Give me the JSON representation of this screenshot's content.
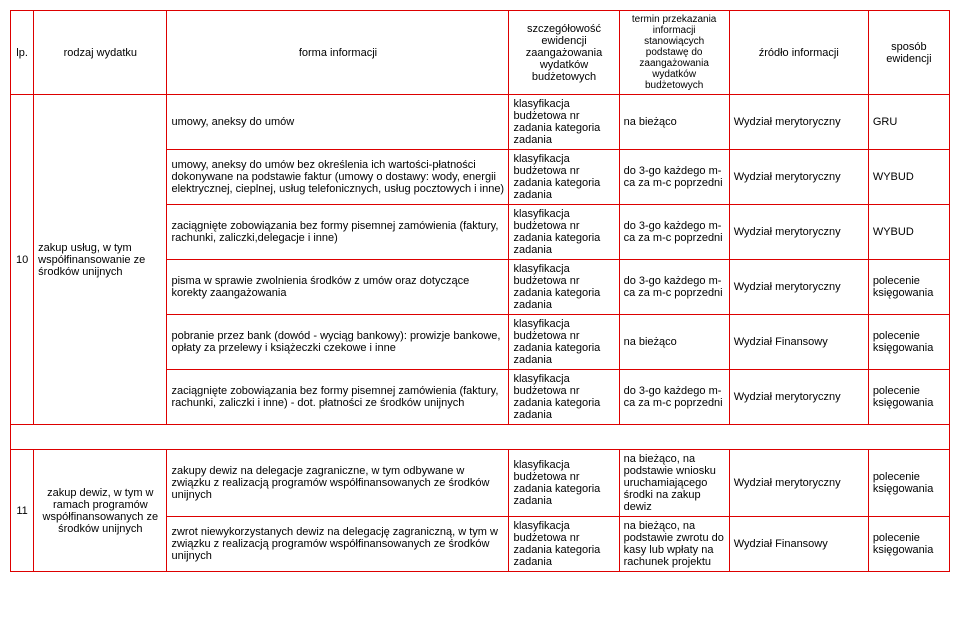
{
  "colors": {
    "border": "#d00",
    "background": "#ffffff",
    "text": "#000000"
  },
  "headers": {
    "lp": "lp.",
    "rodzaj": "rodzaj wydatku",
    "forma": "forma informacji",
    "szcz": "szczegółowość ewidencji zaangażowania wydatków budżetowych",
    "termin": "termin przekazania informacji stanowiących podstawę do zaangażowania wydatków budżetowych",
    "zrodlo": "źródło informacji",
    "sposob": "sposób ewidencji"
  },
  "klasyfikacja": "klasyfikacja budżetowa nr zadania kategoria zadania",
  "rows10": {
    "lp": "10",
    "rodzaj": "zakup usług, w tym współfinansowanie ze środków unijnych",
    "r1": {
      "forma": "umowy, aneksy do umów",
      "termin": "na bieżąco",
      "zrodlo": "Wydział merytoryczny",
      "sposob": "GRU"
    },
    "r2": {
      "forma": "umowy, aneksy do umów bez określenia ich wartości-płatności dokonywane na podstawie faktur (umowy o dostawy: wody, energii elektrycznej, cieplnej, usług telefonicznych, usług pocztowych i inne)",
      "termin": "do 3-go każdego m-ca za m-c poprzedni",
      "zrodlo": "Wydział merytoryczny",
      "sposob": "WYBUD"
    },
    "r3": {
      "forma": "zaciągnięte zobowiązania bez formy pisemnej zamówienia (faktury, rachunki, zaliczki,delegacje i inne)",
      "termin": "do 3-go każdego m-ca za m-c poprzedni",
      "zrodlo": "Wydział merytoryczny",
      "sposob": "WYBUD"
    },
    "r4": {
      "forma": "pisma w sprawie  zwolnienia środków z umów oraz dotyczące korekty zaangażowania",
      "termin": "do 3-go każdego m-ca za m-c poprzedni",
      "zrodlo": "Wydział merytoryczny",
      "sposob": "polecenie księgowania"
    },
    "r5": {
      "forma": "pobranie przez bank (dowód - wyciąg bankowy): prowizje bankowe, opłaty za przelewy i książeczki czekowe i inne",
      "termin": "na bieżąco",
      "zrodlo": "Wydział Finansowy",
      "sposob": "polecenie księgowania"
    },
    "r6": {
      "forma": "zaciągnięte zobowiązania bez formy pisemnej zamówienia (faktury, rachunki, zaliczki i inne) - dot. płatności ze środków unijnych",
      "termin": "do 3-go każdego m-ca za m-c poprzedni",
      "zrodlo": "Wydział merytoryczny",
      "sposob": "polecenie księgowania"
    }
  },
  "rows11": {
    "lp": "11",
    "rodzaj": "zakup dewiz, w tym w ramach programów współfinansowanych ze środków unijnych",
    "r1": {
      "forma": "zakupy dewiz na delegacje zagraniczne, w tym odbywane w związku z realizacją programów współfinansowanych ze środków unijnych",
      "termin": "na bieżąco, na podstawie wniosku uruchamiającego środki na zakup dewiz",
      "zrodlo": "Wydział merytoryczny",
      "sposob": "polecenie księgowania"
    },
    "r2": {
      "forma": "zwrot niewykorzystanych dewiz na delegację zagraniczną, w tym w związku z realizacją programów współfinansowanych ze środków unijnych",
      "termin": "na bieżąco, na podstawie zwrotu do kasy lub wpłaty na rachunek projektu",
      "zrodlo": "Wydział Finansowy",
      "sposob": "polecenie księgowania"
    }
  }
}
